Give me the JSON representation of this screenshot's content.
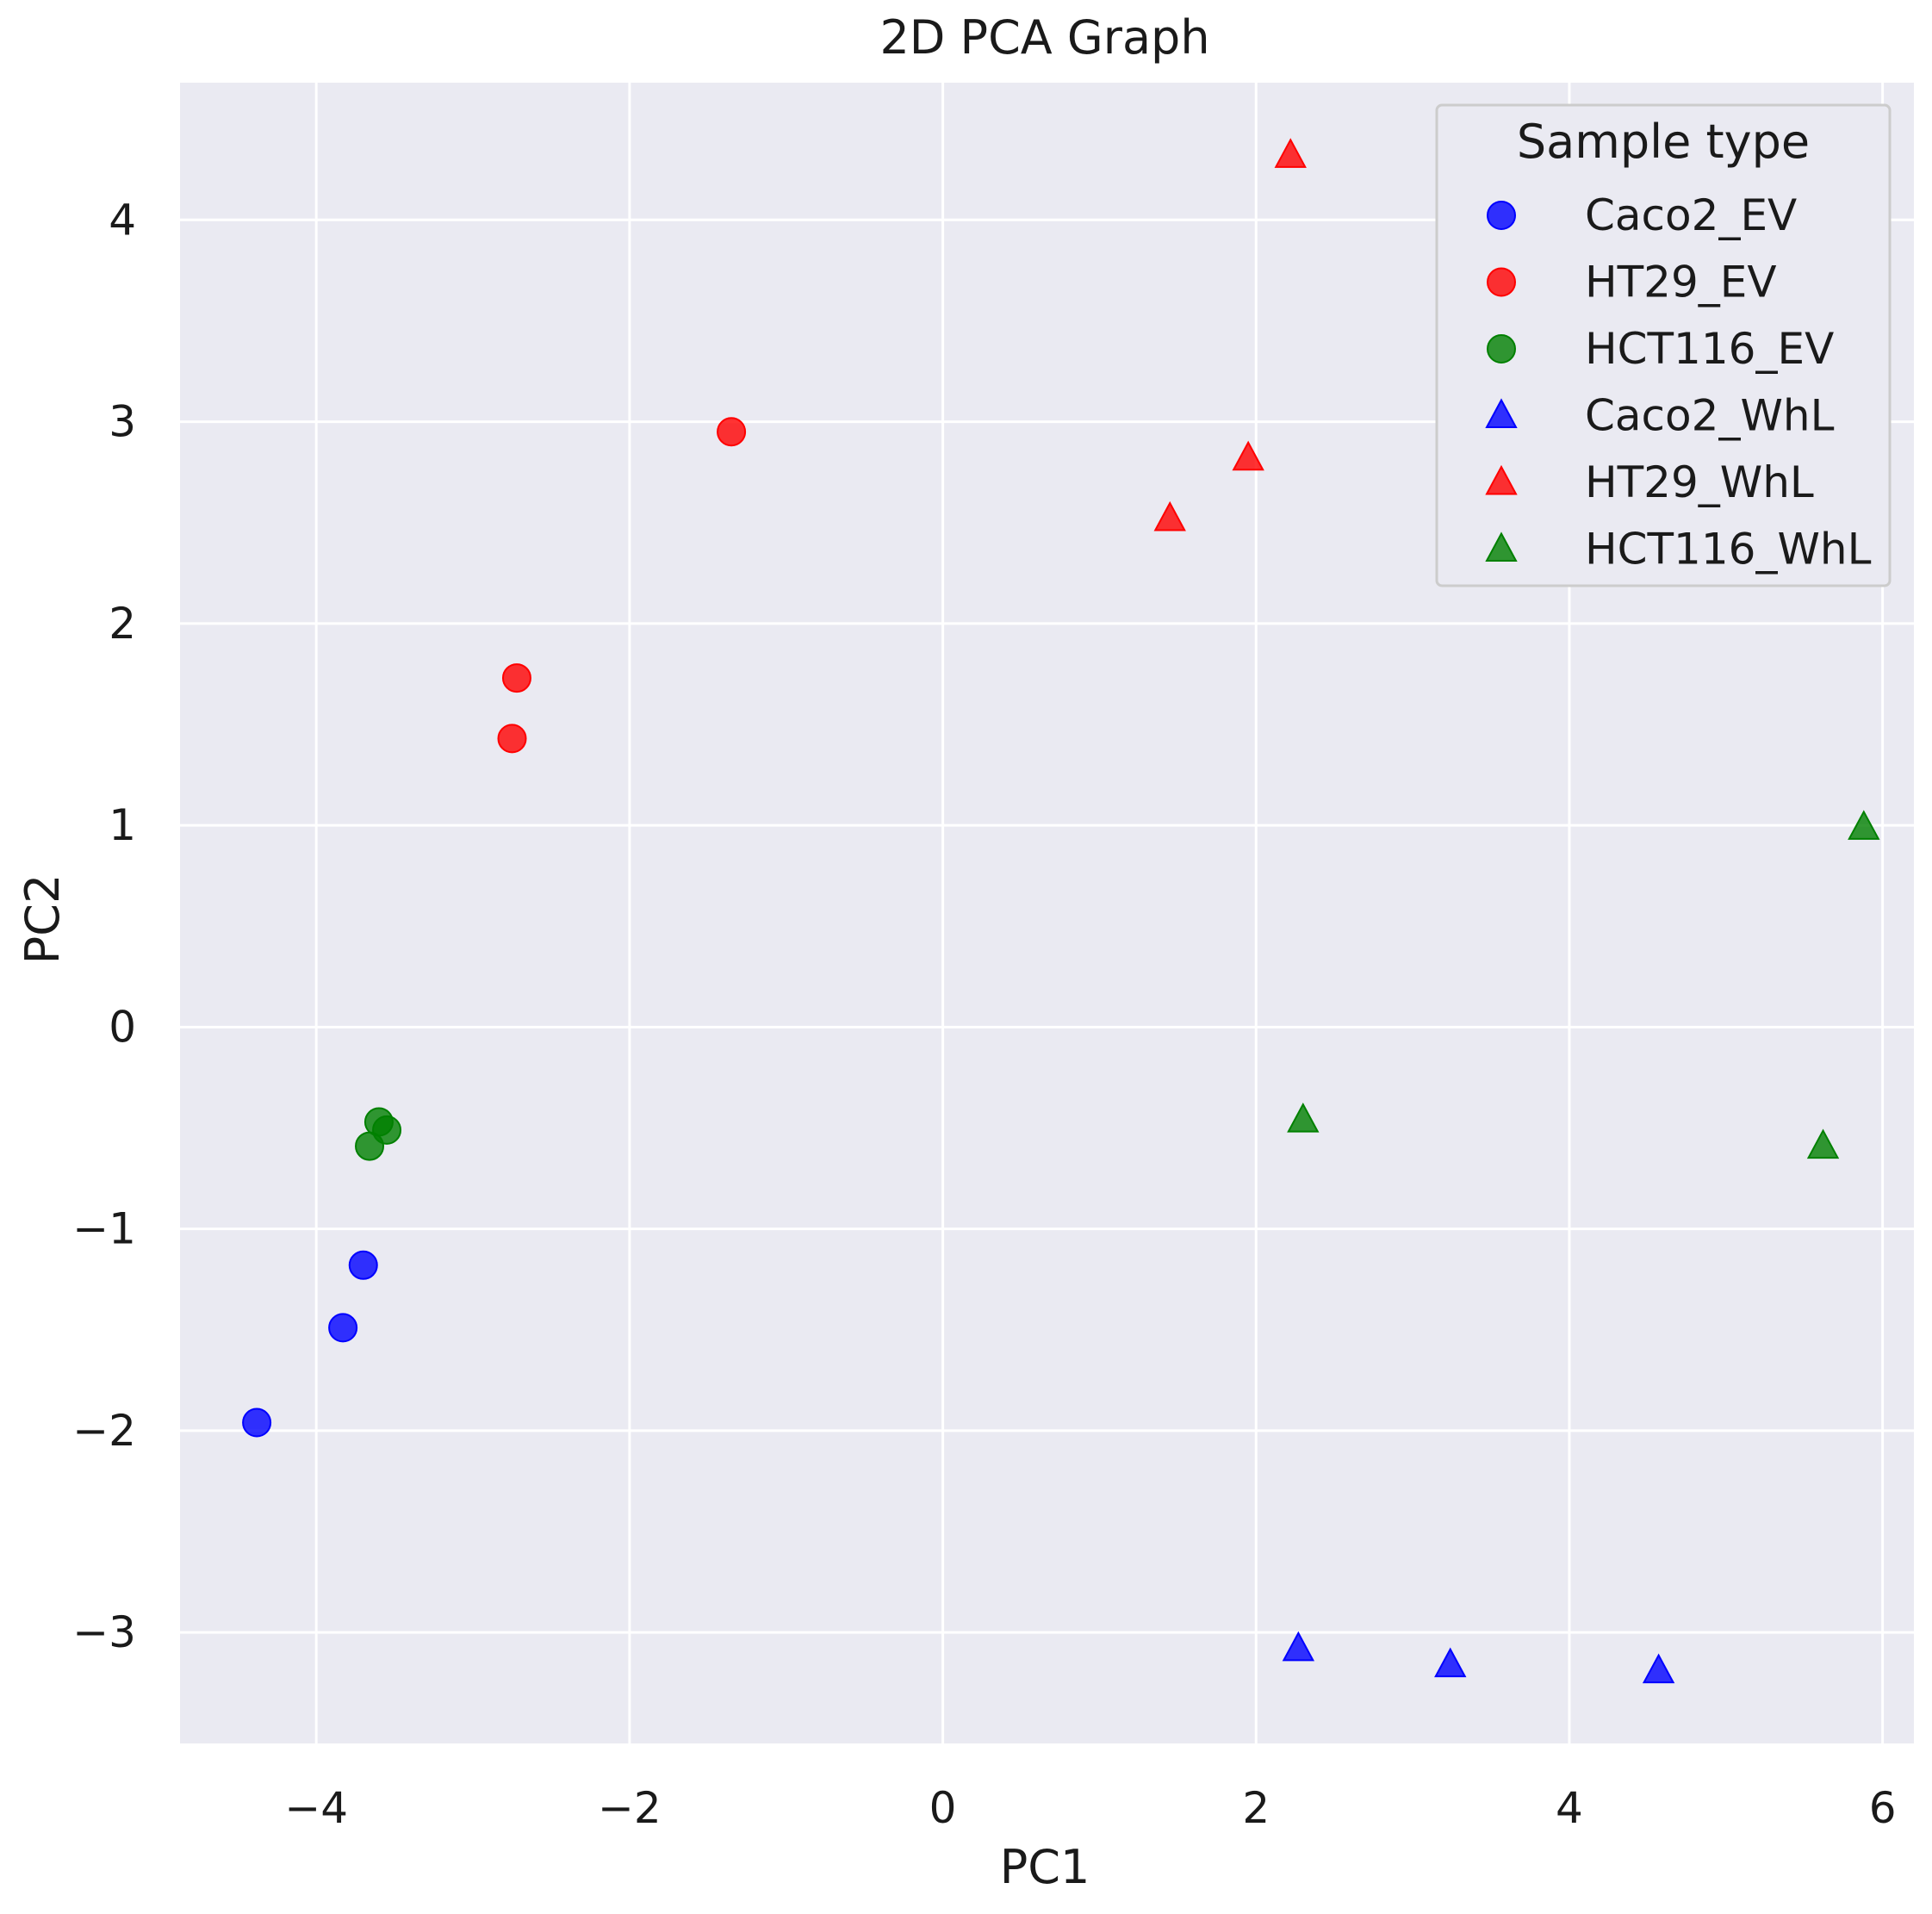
{
  "chart_data": {
    "type": "scatter",
    "title": "2D PCA Graph",
    "xlabel": "PC1",
    "ylabel": "PC2",
    "xlim": [
      -4.87,
      6.2
    ],
    "ylim": [
      -3.55,
      4.68
    ],
    "xticks": [
      -4,
      -2,
      0,
      2,
      4,
      6
    ],
    "yticks": [
      -3,
      -2,
      -1,
      0,
      1,
      2,
      3,
      4
    ],
    "xtick_labels": [
      "−4",
      "−2",
      "0",
      "2",
      "4",
      "6"
    ],
    "ytick_labels": [
      "−3",
      "−2",
      "−1",
      "0",
      "1",
      "2",
      "3",
      "4"
    ],
    "grid": true,
    "background": "#EAEAF2",
    "legend": {
      "title": "Sample type",
      "placement": "top-right"
    },
    "series": [
      {
        "name": "Caco2_EV",
        "marker": "circle",
        "color": "#0000FF",
        "points": [
          [
            -4.38,
            -1.96
          ],
          [
            -3.83,
            -1.49
          ],
          [
            -3.7,
            -1.18
          ]
        ]
      },
      {
        "name": "HT29_EV",
        "marker": "circle",
        "color": "#FF0000",
        "points": [
          [
            -1.35,
            2.95
          ],
          [
            -2.72,
            1.73
          ],
          [
            -2.75,
            1.43
          ]
        ]
      },
      {
        "name": "HCT116_EV",
        "marker": "circle",
        "color": "#008000",
        "points": [
          [
            -3.6,
            -0.47
          ],
          [
            -3.55,
            -0.51
          ],
          [
            -3.66,
            -0.59
          ]
        ]
      },
      {
        "name": "Caco2_WhL",
        "marker": "triangle",
        "color": "#0000FF",
        "points": [
          [
            2.27,
            -3.08
          ],
          [
            3.24,
            -3.16
          ],
          [
            4.57,
            -3.19
          ]
        ]
      },
      {
        "name": "HT29_WhL",
        "marker": "triangle",
        "color": "#FF0000",
        "points": [
          [
            2.22,
            4.32
          ],
          [
            1.95,
            2.82
          ],
          [
            1.45,
            2.52
          ]
        ]
      },
      {
        "name": "HCT116_WhL",
        "marker": "triangle",
        "color": "#008000",
        "points": [
          [
            5.88,
            0.99
          ],
          [
            2.3,
            -0.46
          ],
          [
            5.62,
            -0.59
          ]
        ]
      }
    ]
  }
}
